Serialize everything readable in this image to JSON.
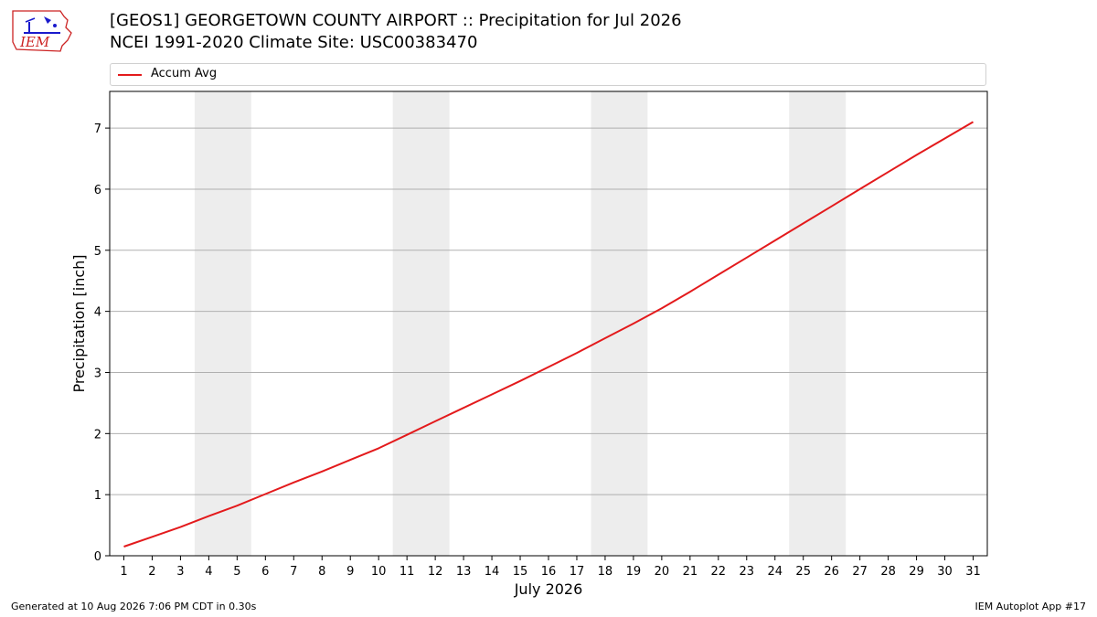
{
  "header": {
    "title_line1": "[GEOS1] GEORGETOWN COUNTY AIRPORT :: Precipitation for Jul 2026",
    "title_line2": "NCEI 1991-2020 Climate Site: USC00383470",
    "logo_text": "IEM"
  },
  "legend": {
    "label": "Accum Avg",
    "color": "#e31a1c"
  },
  "footer": {
    "left": "Generated at 10 Aug 2026 7:06 PM CDT in 0.30s",
    "right": "IEM Autoplot App #17"
  },
  "chart_data": {
    "type": "line",
    "xlabel": "July 2026",
    "ylabel": "Precipitation [inch]",
    "xlim": [
      0.5,
      31.5
    ],
    "ylim": [
      0,
      7.6
    ],
    "yticks": [
      0,
      1,
      2,
      3,
      4,
      5,
      6,
      7
    ],
    "x": [
      1,
      2,
      3,
      4,
      5,
      6,
      7,
      8,
      9,
      10,
      11,
      12,
      13,
      14,
      15,
      16,
      17,
      18,
      19,
      20,
      21,
      22,
      23,
      24,
      25,
      26,
      27,
      28,
      29,
      30,
      31
    ],
    "x_tick_labels": [
      "1",
      "2",
      "3",
      "4",
      "5",
      "6",
      "7",
      "8",
      "9",
      "10",
      "11",
      "12",
      "13",
      "14",
      "15",
      "16",
      "17",
      "18",
      "19",
      "20",
      "21",
      "22",
      "23",
      "24",
      "25",
      "26",
      "27",
      "28",
      "29",
      "30",
      "31"
    ],
    "weekend_bands": [
      [
        4,
        5
      ],
      [
        11,
        12
      ],
      [
        18,
        19
      ],
      [
        25,
        26
      ]
    ],
    "grid": "horizontal",
    "legend_position": "top",
    "series": [
      {
        "name": "Accum Avg",
        "color": "#e31a1c",
        "values": [
          0.15,
          0.31,
          0.47,
          0.65,
          0.82,
          1.01,
          1.2,
          1.38,
          1.57,
          1.76,
          1.98,
          2.2,
          2.42,
          2.64,
          2.86,
          3.09,
          3.32,
          3.56,
          3.8,
          4.05,
          4.32,
          4.6,
          4.88,
          5.16,
          5.44,
          5.72,
          6.0,
          6.28,
          6.56,
          6.83,
          7.1
        ]
      }
    ]
  }
}
